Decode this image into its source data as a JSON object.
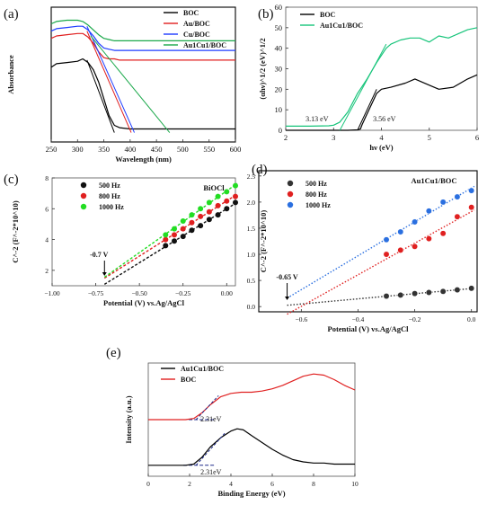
{
  "panels": [
    {
      "id": "a",
      "label": "(a)"
    },
    {
      "id": "b",
      "label": "(b)"
    },
    {
      "id": "c",
      "label": "(c)"
    },
    {
      "id": "d",
      "label": "(d)"
    },
    {
      "id": "e",
      "label": "(e)"
    }
  ],
  "chart_data": [
    {
      "panel": "(a)",
      "type": "line",
      "xlabel": "Wavelength (nm)",
      "ylabel": "Absorbance",
      "xlim": [
        250,
        600
      ],
      "xticks": [
        250,
        300,
        350,
        400,
        450,
        500,
        550,
        600
      ],
      "legend_position": "top-right",
      "series": [
        {
          "name": "BOC",
          "color": "#000000",
          "x": [
            250,
            260,
            280,
            300,
            310,
            320,
            330,
            340,
            350,
            360,
            370,
            380,
            400,
            450,
            500,
            550,
            600
          ],
          "y": [
            0.54,
            0.57,
            0.58,
            0.59,
            0.61,
            0.58,
            0.52,
            0.42,
            0.28,
            0.14,
            0.06,
            0.04,
            0.03,
            0.03,
            0.03,
            0.03,
            0.03
          ]
        },
        {
          "name": "Au/BOC",
          "color": "#e02020",
          "x": [
            250,
            260,
            280,
            300,
            310,
            320,
            330,
            340,
            350,
            360,
            370,
            380,
            400,
            450,
            500,
            550,
            600
          ],
          "y": [
            0.78,
            0.8,
            0.81,
            0.82,
            0.82,
            0.79,
            0.74,
            0.67,
            0.62,
            0.61,
            0.61,
            0.6,
            0.6,
            0.6,
            0.6,
            0.6,
            0.6
          ]
        },
        {
          "name": "Cu/BOC",
          "color": "#1e3cff",
          "x": [
            250,
            260,
            280,
            300,
            310,
            320,
            330,
            340,
            350,
            360,
            370,
            380,
            400,
            450,
            500,
            550,
            600
          ],
          "y": [
            0.84,
            0.86,
            0.87,
            0.88,
            0.88,
            0.85,
            0.8,
            0.74,
            0.7,
            0.69,
            0.68,
            0.68,
            0.68,
            0.68,
            0.68,
            0.68,
            0.68
          ]
        },
        {
          "name": "Au1Cu1/BOC",
          "color": "#1aa84a",
          "x": [
            250,
            260,
            280,
            300,
            310,
            320,
            330,
            340,
            350,
            360,
            370,
            380,
            400,
            450,
            500,
            550,
            600
          ],
          "y": [
            0.9,
            0.92,
            0.93,
            0.93,
            0.92,
            0.89,
            0.85,
            0.81,
            0.78,
            0.77,
            0.76,
            0.76,
            0.76,
            0.76,
            0.76,
            0.76,
            0.76
          ]
        }
      ],
      "tangents": [
        {
          "color": "#000000",
          "x": [
            318,
            370
          ],
          "y": [
            0.6,
            0.0
          ]
        },
        {
          "color": "#e02020",
          "x": [
            318,
            402
          ],
          "y": [
            0.84,
            0.0
          ]
        },
        {
          "color": "#1e3cff",
          "x": [
            318,
            408
          ],
          "y": [
            0.88,
            0.0
          ]
        },
        {
          "color": "#1aa84a",
          "x": [
            325,
            475
          ],
          "y": [
            0.8,
            0.0
          ]
        }
      ]
    },
    {
      "panel": "(b)",
      "type": "line",
      "xlabel": "hν (eV)",
      "ylabel": "(αhν)^1/2 (eV)^1/2",
      "xlim": [
        2,
        6
      ],
      "ylim": [
        0,
        60
      ],
      "xticks": [
        2,
        3,
        4,
        5,
        6
      ],
      "yticks": [
        0,
        10,
        20,
        30,
        40,
        50,
        60
      ],
      "legend_position": "top-left",
      "series": [
        {
          "name": "BOC",
          "color": "#000000",
          "x": [
            2,
            2.5,
            3,
            3.3,
            3.5,
            3.56,
            3.6,
            3.7,
            3.8,
            3.9,
            4.0,
            4.2,
            4.5,
            4.7,
            5.0,
            5.2,
            5.5,
            5.8,
            6.0
          ],
          "y": [
            0,
            0,
            0,
            0,
            0.2,
            0.6,
            3,
            8,
            13,
            18,
            20,
            21,
            23,
            25,
            22,
            20,
            21,
            25,
            27
          ]
        },
        {
          "name": "Au1Cu1/BOC",
          "color": "#16c47a",
          "x": [
            2,
            2.5,
            2.9,
            3.0,
            3.13,
            3.3,
            3.5,
            3.7,
            3.9,
            4.1,
            4.2,
            4.4,
            4.6,
            4.8,
            5.0,
            5.2,
            5.4,
            5.6,
            5.8,
            6.0
          ],
          "y": [
            2,
            2,
            2.2,
            2.5,
            4,
            9,
            18,
            25,
            33,
            40,
            42,
            44,
            45,
            45,
            43,
            46,
            45,
            47,
            49,
            50
          ]
        }
      ],
      "tangents": [
        {
          "color": "#000000",
          "x": [
            3.5,
            3.9
          ],
          "y": [
            0,
            20
          ]
        },
        {
          "color": "#16c47a",
          "x": [
            3.13,
            4.1
          ],
          "y": [
            0,
            42
          ]
        }
      ],
      "annotations": [
        {
          "text": "3.13 eV",
          "x": 3.13,
          "y": 0
        },
        {
          "text": "3.56 eV",
          "x": 3.56,
          "y": 0
        }
      ]
    },
    {
      "panel": "(c)",
      "type": "scatter",
      "title": "BiOCl",
      "xlabel": "Potential (V) vs.Ag/AgCl",
      "ylabel": "C^-2 (F^-2*10^10)",
      "xlim": [
        -1.0,
        0.05
      ],
      "ylim": [
        1,
        8
      ],
      "xticks": [
        -1.0,
        -0.75,
        -0.5,
        -0.25,
        0.0
      ],
      "yticks": [
        2,
        4,
        6,
        8
      ],
      "legend_position": "top-left",
      "intercept": {
        "text": "-0.7 V",
        "x": -0.7
      },
      "series": [
        {
          "name": "500 Hz",
          "color": "#111111",
          "x": [
            -0.35,
            -0.3,
            -0.25,
            -0.2,
            -0.15,
            -0.1,
            -0.05,
            0.0,
            0.05
          ],
          "y": [
            3.6,
            3.9,
            4.2,
            4.6,
            4.9,
            5.3,
            5.6,
            6.0,
            6.4
          ]
        },
        {
          "name": "800 Hz",
          "color": "#e02020",
          "x": [
            -0.35,
            -0.3,
            -0.25,
            -0.2,
            -0.15,
            -0.1,
            -0.05,
            0.0,
            0.05
          ],
          "y": [
            4.0,
            4.3,
            4.7,
            5.1,
            5.5,
            5.8,
            6.2,
            6.5,
            6.8
          ]
        },
        {
          "name": "1000 Hz",
          "color": "#22dd22",
          "x": [
            -0.35,
            -0.3,
            -0.25,
            -0.2,
            -0.15,
            -0.1,
            -0.05,
            0.0,
            0.05
          ],
          "y": [
            4.3,
            4.7,
            5.2,
            5.6,
            6.0,
            6.4,
            6.8,
            7.1,
            7.5
          ]
        }
      ]
    },
    {
      "panel": "(d)",
      "type": "scatter",
      "title": "Au1Cu1/BOC",
      "xlabel": "Potential (V) vs.Ag/AgCl",
      "ylabel": "C^-2 (F^-2*10^10)",
      "xlim": [
        -0.75,
        0.02
      ],
      "ylim": [
        -0.1,
        2.6
      ],
      "xticks": [
        -0.6,
        -0.4,
        -0.2,
        0.0
      ],
      "yticks": [
        0.0,
        0.5,
        1.0,
        1.5,
        2.0,
        2.5
      ],
      "legend_position": "top-left",
      "intercept": {
        "text": "-0.65 V",
        "x": -0.65
      },
      "series": [
        {
          "name": "500 Hz",
          "color": "#333333",
          "x": [
            -0.3,
            -0.25,
            -0.2,
            -0.15,
            -0.1,
            -0.05,
            0.0
          ],
          "y": [
            0.2,
            0.22,
            0.25,
            0.27,
            0.29,
            0.32,
            0.35
          ]
        },
        {
          "name": "800 Hz",
          "color": "#e02020",
          "x": [
            -0.3,
            -0.25,
            -0.2,
            -0.15,
            -0.1,
            -0.05,
            0.0
          ],
          "y": [
            1.0,
            1.08,
            1.15,
            1.3,
            1.4,
            1.72,
            1.9
          ]
        },
        {
          "name": "1000 Hz",
          "color": "#2a6fe0",
          "x": [
            -0.3,
            -0.25,
            -0.2,
            -0.15,
            -0.1,
            -0.05,
            0.0
          ],
          "y": [
            1.28,
            1.43,
            1.62,
            1.83,
            2.0,
            2.1,
            2.22
          ]
        }
      ]
    },
    {
      "panel": "(e)",
      "type": "line",
      "xlabel": "Binding Energy (eV)",
      "ylabel": "Intensity (a.u.)",
      "xlim": [
        0,
        10
      ],
      "xticks": [
        0,
        2,
        4,
        6,
        8,
        10
      ],
      "legend_position": "top-left",
      "series": [
        {
          "name": "Au1Cu1/BOC",
          "color": "#000000",
          "x": [
            0,
            1,
            1.8,
            2.2,
            2.6,
            3.0,
            3.5,
            4.0,
            4.3,
            4.6,
            5.0,
            5.5,
            6.0,
            6.5,
            7.0,
            7.5,
            8.0,
            8.5,
            9.0,
            9.5,
            10
          ],
          "y": [
            0.1,
            0.1,
            0.1,
            0.11,
            0.17,
            0.26,
            0.34,
            0.4,
            0.42,
            0.41,
            0.36,
            0.3,
            0.24,
            0.19,
            0.15,
            0.13,
            0.12,
            0.12,
            0.11,
            0.11,
            0.11
          ]
        },
        {
          "name": "BOC",
          "color": "#e02020",
          "x": [
            0,
            1,
            1.8,
            2.2,
            2.6,
            3.0,
            3.5,
            4.0,
            4.5,
            5.0,
            5.5,
            6.0,
            6.5,
            7.0,
            7.5,
            8.0,
            8.5,
            9.0,
            9.5,
            10
          ],
          "y": [
            0.5,
            0.5,
            0.5,
            0.51,
            0.56,
            0.63,
            0.7,
            0.73,
            0.74,
            0.74,
            0.75,
            0.77,
            0.8,
            0.84,
            0.88,
            0.9,
            0.89,
            0.85,
            0.8,
            0.76
          ]
        }
      ],
      "tangents": [
        {
          "color": "#1e2a8a",
          "x": [
            2.31,
            3.4
          ],
          "y": [
            0.5,
            0.71
          ]
        },
        {
          "color": "#1e2a8a",
          "x": [
            2.31,
            3.7
          ],
          "y": [
            0.1,
            0.38
          ]
        }
      ],
      "baselines": [
        {
          "x": [
            1.7,
            3.2
          ],
          "y": [
            0.5,
            0.5
          ]
        },
        {
          "x": [
            1.7,
            3.2
          ],
          "y": [
            0.1,
            0.1
          ]
        }
      ],
      "annotations": [
        {
          "text": "2.31eV",
          "x": 2.31,
          "y": 0.5
        },
        {
          "text": "2.31eV",
          "x": 2.31,
          "y": 0.1
        }
      ]
    }
  ]
}
